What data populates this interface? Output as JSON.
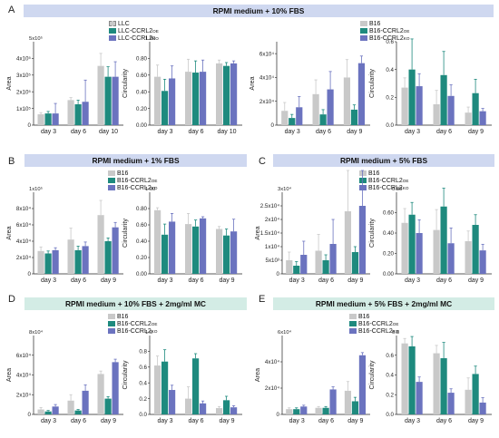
{
  "colors": {
    "wt": "#c9c9c9",
    "oe": "#1e8a7e",
    "ko": "#6b73bf"
  },
  "panels": [
    {
      "letter": "A",
      "banner": "RPMI medium + 10% FBS",
      "legend_left": [
        {
          "base": "LLC",
          "sup": ""
        },
        {
          "base": "LLC-CCRL2",
          "sup": "OE"
        },
        {
          "base": "LLC-CCRL2",
          "sup": "KO"
        }
      ],
      "legend_right": [
        {
          "base": "B16",
          "sup": ""
        },
        {
          "base": "B16-CCRL2",
          "sup": "OE"
        },
        {
          "base": "B16-CCRL2",
          "sup": "KO"
        }
      ]
    },
    {
      "letter": "B",
      "banner": "RPMI medium + 1% FBS",
      "legend": [
        {
          "base": "B16",
          "sup": ""
        },
        {
          "base": "B16-CCRL2",
          "sup": "OE"
        },
        {
          "base": "B16-CCRL2",
          "sup": "KO"
        }
      ]
    },
    {
      "letter": "C",
      "banner": "RPMI medium + 5% FBS",
      "legend": [
        {
          "base": "B16",
          "sup": ""
        },
        {
          "base": "B16-CCRL2",
          "sup": "OE"
        },
        {
          "base": "B16-CCRL2",
          "sup": "KO"
        }
      ]
    },
    {
      "letter": "D",
      "banner": "RPMI medium + 10% FBS + 2mg/ml MC",
      "legend": [
        {
          "base": "B16",
          "sup": ""
        },
        {
          "base": "B16-CCRL2",
          "sup": "OE"
        },
        {
          "base": "B16-CCRL2",
          "sup": "KO"
        }
      ]
    },
    {
      "letter": "E",
      "banner": "RPMI medium + 5% FBS + 2mg/ml MC",
      "legend": [
        {
          "base": "B16",
          "sup": ""
        },
        {
          "base": "B16-CCRL2",
          "sup": "OE"
        },
        {
          "base": "B16-CCRL2",
          "sup": "KO"
        }
      ]
    }
  ],
  "chart_data": [
    {
      "id": "A-llc-area",
      "panel": "A",
      "type": "bar",
      "ylabel": "Area",
      "ylim": [
        0,
        500000
      ],
      "yticks": [
        {
          "v": 0,
          "t": "0"
        },
        {
          "v": 100000,
          "t": "1x10⁵"
        },
        {
          "v": 200000,
          "t": "2x10⁵"
        },
        {
          "v": 300000,
          "t": "3x10⁵"
        },
        {
          "v": 400000,
          "t": "4x10⁵"
        }
      ],
      "y_top_label": "5x10⁵",
      "categories": [
        "day 3",
        "day 6",
        "day 10"
      ],
      "series": [
        {
          "name": "LLC",
          "values": [
            65000,
            150000,
            355000
          ],
          "errors": [
            10000,
            15000,
            75000
          ]
        },
        {
          "name": "LLC-CCRL2 OE",
          "values": [
            70000,
            125000,
            290000
          ],
          "errors": [
            12000,
            25000,
            60000
          ]
        },
        {
          "name": "LLC-CCRL2 KO",
          "values": [
            70000,
            140000,
            290000
          ],
          "errors": [
            60000,
            130000,
            90000
          ]
        }
      ]
    },
    {
      "id": "A-llc-circ",
      "panel": "A",
      "type": "bar",
      "ylabel": "Circularity",
      "ylim": [
        0,
        1.0
      ],
      "yticks": [
        {
          "v": 0,
          "t": "0.00"
        },
        {
          "v": 0.2,
          "t": "0.20"
        },
        {
          "v": 0.4,
          "t": "0.40"
        },
        {
          "v": 0.6,
          "t": "0.60"
        },
        {
          "v": 0.8,
          "t": "0.80"
        }
      ],
      "y_top_label": "1.00",
      "categories": [
        "day 3",
        "day 6",
        "day 10"
      ],
      "series": [
        {
          "name": "LLC",
          "values": [
            0.58,
            0.64,
            0.74
          ],
          "errors": [
            0.14,
            0.15,
            0.04
          ]
        },
        {
          "name": "LLC-CCRL2 OE",
          "values": [
            0.41,
            0.63,
            0.71
          ],
          "errors": [
            0.14,
            0.14,
            0.04
          ]
        },
        {
          "name": "LLC-CCRL2 KO",
          "values": [
            0.56,
            0.64,
            0.74
          ],
          "errors": [
            0.15,
            0.14,
            0.03
          ]
        }
      ]
    },
    {
      "id": "A-b16-area",
      "panel": "A",
      "type": "bar",
      "ylabel": "Area",
      "ylim": [
        0,
        70000
      ],
      "yticks": [
        {
          "v": 0,
          "t": "0"
        },
        {
          "v": 20000,
          "t": "2x10⁴"
        },
        {
          "v": 40000,
          "t": "4x10⁴"
        },
        {
          "v": 60000,
          "t": "6x10⁴"
        }
      ],
      "y_top_label": "",
      "categories": [
        "day 3",
        "day 6",
        "day 9"
      ],
      "series": [
        {
          "name": "B16",
          "values": [
            12000,
            26000,
            40000
          ],
          "errors": [
            7000,
            12000,
            15000
          ]
        },
        {
          "name": "B16-CCRL2 OE",
          "values": [
            6000,
            9000,
            13000
          ],
          "errors": [
            3000,
            4000,
            4000
          ]
        },
        {
          "name": "B16-CCRL2 KO",
          "values": [
            15000,
            30000,
            52000
          ],
          "errors": [
            9000,
            15000,
            6000
          ]
        }
      ]
    },
    {
      "id": "A-b16-circ",
      "panel": "A",
      "type": "bar",
      "ylabel": "Circularity",
      "ylim": [
        0,
        0.6
      ],
      "yticks": [
        {
          "v": 0,
          "t": "0.0"
        },
        {
          "v": 0.2,
          "t": "0.2"
        },
        {
          "v": 0.4,
          "t": "0.4"
        },
        {
          "v": 0.6,
          "t": "0.6"
        }
      ],
      "y_top_label": "",
      "categories": [
        "day 3",
        "day 6",
        "day 9"
      ],
      "series": [
        {
          "name": "B16",
          "values": [
            0.27,
            0.15,
            0.09
          ],
          "errors": [
            0.07,
            0.1,
            0.04
          ]
        },
        {
          "name": "B16-CCRL2 OE",
          "values": [
            0.4,
            0.36,
            0.23
          ],
          "errors": [
            0.22,
            0.17,
            0.1
          ]
        },
        {
          "name": "B16-CCRL2 KO",
          "values": [
            0.28,
            0.21,
            0.1
          ],
          "errors": [
            0.09,
            0.08,
            0.02
          ]
        }
      ]
    },
    {
      "id": "B-area",
      "panel": "B",
      "type": "bar",
      "ylabel": "Area",
      "ylim": [
        0,
        100000
      ],
      "yticks": [
        {
          "v": 0,
          "t": "0"
        },
        {
          "v": 20000,
          "t": "2x10⁴"
        },
        {
          "v": 40000,
          "t": "4x10⁴"
        },
        {
          "v": 60000,
          "t": "6x10⁴"
        },
        {
          "v": 80000,
          "t": "8x10⁴"
        }
      ],
      "y_top_label": "1x10⁵",
      "categories": [
        "day 3",
        "day 6",
        "day 9"
      ],
      "series": [
        {
          "name": "B16",
          "values": [
            28000,
            42000,
            72000
          ],
          "errors": [
            5000,
            14000,
            18000
          ]
        },
        {
          "name": "B16-CCRL2 OE",
          "values": [
            25000,
            29000,
            40000
          ],
          "errors": [
            3000,
            5000,
            4000
          ]
        },
        {
          "name": "B16-CCRL2 KO",
          "values": [
            29000,
            34000,
            57000
          ],
          "errors": [
            3000,
            5000,
            6000
          ]
        }
      ]
    },
    {
      "id": "B-circ",
      "panel": "B",
      "type": "bar",
      "ylabel": "Circularity",
      "ylim": [
        0,
        1.0
      ],
      "yticks": [
        {
          "v": 0,
          "t": "0.00"
        },
        {
          "v": 0.2,
          "t": "0.20"
        },
        {
          "v": 0.4,
          "t": "0.40"
        },
        {
          "v": 0.6,
          "t": "0.60"
        },
        {
          "v": 0.8,
          "t": "0.80"
        }
      ],
      "y_top_label": "1.00",
      "categories": [
        "day 3",
        "day 6",
        "day 9"
      ],
      "series": [
        {
          "name": "B16",
          "values": [
            0.78,
            0.61,
            0.55
          ],
          "errors": [
            0.03,
            0.13,
            0.03
          ]
        },
        {
          "name": "B16-CCRL2 OE",
          "values": [
            0.48,
            0.58,
            0.47
          ],
          "errors": [
            0.13,
            0.08,
            0.08
          ]
        },
        {
          "name": "B16-CCRL2 KO",
          "values": [
            0.64,
            0.68,
            0.52
          ],
          "errors": [
            0.1,
            0.02,
            0.15
          ]
        }
      ]
    },
    {
      "id": "C-area",
      "panel": "C",
      "type": "bar",
      "ylabel": "Area",
      "ylim": [
        0,
        30000
      ],
      "yticks": [
        {
          "v": 0,
          "t": "0"
        },
        {
          "v": 5000,
          "t": "5x10³"
        },
        {
          "v": 10000,
          "t": "1x10⁴"
        },
        {
          "v": 15000,
          "t": "1.5x10⁴"
        },
        {
          "v": 20000,
          "t": "2x10⁴"
        },
        {
          "v": 25000,
          "t": "2.5x10⁴"
        }
      ],
      "y_top_label": "3x10⁴",
      "categories": [
        "day 3",
        "day 6",
        "day 9"
      ],
      "series": [
        {
          "name": "B16",
          "values": [
            5000,
            8500,
            23000
          ],
          "errors": [
            3000,
            6000,
            15000
          ]
        },
        {
          "name": "B16-CCRL2 OE",
          "values": [
            3000,
            5000,
            8000
          ],
          "errors": [
            1500,
            2000,
            2000
          ]
        },
        {
          "name": "B16-CCRL2 KO",
          "values": [
            7000,
            11000,
            25000
          ],
          "errors": [
            5000,
            9000,
            13000
          ]
        }
      ]
    },
    {
      "id": "C-circ",
      "panel": "C",
      "type": "bar",
      "ylabel": "Circularity",
      "ylim": [
        0,
        0.8
      ],
      "yticks": [
        {
          "v": 0,
          "t": "0.00"
        },
        {
          "v": 0.2,
          "t": "0.20"
        },
        {
          "v": 0.4,
          "t": "0.40"
        },
        {
          "v": 0.6,
          "t": "0.60"
        }
      ],
      "y_top_label": "0.80",
      "categories": [
        "day 3",
        "day 6",
        "day 9"
      ],
      "series": [
        {
          "name": "B16",
          "values": [
            0.5,
            0.43,
            0.32
          ],
          "errors": [
            0.14,
            0.2,
            0.1
          ]
        },
        {
          "name": "B16-CCRL2 OE",
          "values": [
            0.58,
            0.66,
            0.48
          ],
          "errors": [
            0.12,
            0.18,
            0.1
          ]
        },
        {
          "name": "B16-CCRL2 KO",
          "values": [
            0.4,
            0.3,
            0.23
          ],
          "errors": [
            0.13,
            0.15,
            0.06
          ]
        }
      ]
    },
    {
      "id": "D-area",
      "panel": "D",
      "type": "bar",
      "ylabel": "Area",
      "ylim": [
        0,
        80000
      ],
      "yticks": [
        {
          "v": 0,
          "t": "0"
        },
        {
          "v": 20000,
          "t": "2x10⁴"
        },
        {
          "v": 40000,
          "t": "4x10⁴"
        },
        {
          "v": 60000,
          "t": "6x10⁴"
        }
      ],
      "y_top_label": "8x10⁴",
      "categories": [
        "day 3",
        "day 6",
        "day 9"
      ],
      "series": [
        {
          "name": "B16",
          "values": [
            5000,
            14000,
            41000
          ],
          "errors": [
            2000,
            6000,
            3000
          ]
        },
        {
          "name": "B16-CCRL2 OE",
          "values": [
            3000,
            4000,
            16000
          ],
          "errors": [
            1000,
            1000,
            2000
          ]
        },
        {
          "name": "B16-CCRL2 KO",
          "values": [
            8000,
            24000,
            53000
          ],
          "errors": [
            2000,
            6000,
            3000
          ]
        }
      ]
    },
    {
      "id": "D-circ",
      "panel": "D",
      "type": "bar",
      "ylabel": "Circularity",
      "ylim": [
        0,
        1.0
      ],
      "yticks": [
        {
          "v": 0,
          "t": "0.0"
        },
        {
          "v": 0.2,
          "t": "0.2"
        },
        {
          "v": 0.4,
          "t": "0.4"
        },
        {
          "v": 0.6,
          "t": "0.6"
        },
        {
          "v": 0.8,
          "t": "0.8"
        }
      ],
      "y_top_label": "1.0",
      "categories": [
        "day 3",
        "day 6",
        "day 9"
      ],
      "series": [
        {
          "name": "B16",
          "values": [
            0.62,
            0.2,
            0.08
          ],
          "errors": [
            0.12,
            0.15,
            0.02
          ]
        },
        {
          "name": "B16-CCRL2 OE",
          "values": [
            0.67,
            0.71,
            0.18
          ],
          "errors": [
            0.15,
            0.06,
            0.05
          ]
        },
        {
          "name": "B16-CCRL2 KO",
          "values": [
            0.31,
            0.14,
            0.09
          ],
          "errors": [
            0.06,
            0.03,
            0.02
          ]
        }
      ]
    },
    {
      "id": "E-area",
      "panel": "E",
      "type": "bar",
      "ylabel": "Area",
      "ylim": [
        0,
        60000
      ],
      "yticks": [
        {
          "v": 0,
          "t": "0"
        },
        {
          "v": 20000,
          "t": "2x10⁴"
        },
        {
          "v": 40000,
          "t": "4x10⁴"
        }
      ],
      "y_top_label": "6x10⁴",
      "categories": [
        "day 3",
        "day 6",
        "day 9"
      ],
      "series": [
        {
          "name": "B16",
          "values": [
            4000,
            5000,
            18000
          ],
          "errors": [
            1000,
            1000,
            7000
          ]
        },
        {
          "name": "B16-CCRL2 OE",
          "values": [
            4000,
            5000,
            10000
          ],
          "errors": [
            1000,
            1000,
            3000
          ]
        },
        {
          "name": "B16-CCRL2 KO",
          "values": [
            6000,
            19000,
            45000
          ],
          "errors": [
            1000,
            2000,
            2000
          ]
        }
      ]
    },
    {
      "id": "E-circ",
      "panel": "E",
      "type": "bar",
      "ylabel": "Circularity",
      "ylim": [
        0,
        0.8
      ],
      "yticks": [
        {
          "v": 0,
          "t": "0.0"
        },
        {
          "v": 0.2,
          "t": "0.2"
        },
        {
          "v": 0.4,
          "t": "0.4"
        },
        {
          "v": 0.6,
          "t": "0.6"
        }
      ],
      "y_top_label": "0.8",
      "categories": [
        "day 3",
        "day 6",
        "day 9"
      ],
      "series": [
        {
          "name": "B16",
          "values": [
            0.72,
            0.62,
            0.25
          ],
          "errors": [
            0.05,
            0.08,
            0.12
          ]
        },
        {
          "name": "B16-CCRL2 OE",
          "values": [
            0.69,
            0.57,
            0.41
          ],
          "errors": [
            0.1,
            0.16,
            0.08
          ]
        },
        {
          "name": "B16-CCRL2 KO",
          "values": [
            0.33,
            0.22,
            0.12
          ],
          "errors": [
            0.05,
            0.04,
            0.05
          ]
        }
      ]
    }
  ]
}
